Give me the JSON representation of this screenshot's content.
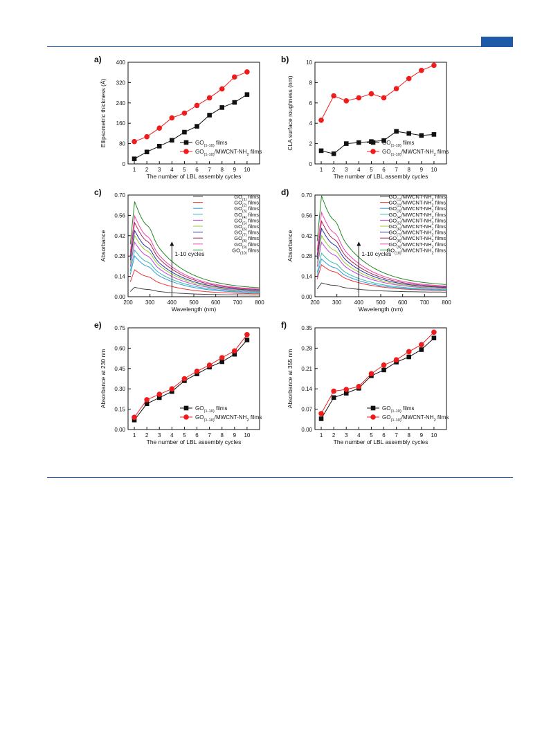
{
  "colors": {
    "header_line": "#1f5aa8",
    "black": "#111111",
    "red": "#ee1c1c"
  },
  "chart_data": [
    {
      "panel_label": "a)",
      "type": "line",
      "x": [
        1,
        2,
        3,
        4,
        5,
        6,
        7,
        8,
        9,
        10
      ],
      "xlabel": "The number of LBL assembly cycles",
      "ylabel": "Ellipsometric thickness (Å)",
      "ylim": [
        0,
        400
      ],
      "yticks": [
        0,
        80,
        160,
        240,
        320,
        400
      ],
      "xticks": [
        1,
        2,
        3,
        4,
        5,
        6,
        7,
        8,
        9,
        10
      ],
      "legend": "bottom-right",
      "series": [
        {
          "name": "GO(1-10) films",
          "color": "#111111",
          "marker": "square",
          "values": [
            20,
            47,
            70,
            93,
            125,
            148,
            192,
            222,
            242,
            273
          ]
        },
        {
          "name": "GO(1-10)/MWCNT-NH2  films",
          "color": "#ee1c1c",
          "marker": "circle",
          "values": [
            88,
            107,
            141,
            181,
            200,
            230,
            260,
            295,
            342,
            362
          ]
        }
      ]
    },
    {
      "panel_label": "b)",
      "type": "line",
      "x": [
        1,
        2,
        3,
        4,
        5,
        6,
        7,
        8,
        9,
        10
      ],
      "xlabel": "The number of LBL assembly cycles",
      "ylabel": "CLA surface roughness  (nm)",
      "ylim": [
        0,
        10
      ],
      "yticks": [
        0,
        2,
        4,
        6,
        8,
        10
      ],
      "xticks": [
        1,
        2,
        3,
        4,
        5,
        6,
        7,
        8,
        9,
        10
      ],
      "legend": "bottom-right",
      "series": [
        {
          "name": "GO(1-10) films",
          "color": "#111111",
          "marker": "square",
          "values": [
            1.3,
            1.0,
            2.0,
            2.1,
            2.2,
            2.3,
            3.2,
            3.0,
            2.8,
            2.9
          ]
        },
        {
          "name": "GO(1-10)/MWCNT-NH2  films",
          "color": "#ee1c1c",
          "marker": "circle",
          "values": [
            4.3,
            6.7,
            6.2,
            6.5,
            6.9,
            6.5,
            7.4,
            8.4,
            9.2,
            9.7
          ]
        }
      ]
    },
    {
      "panel_label": "c)",
      "type": "line",
      "xlabel": "Wavelength   (nm)",
      "ylabel": "Absorbance",
      "xlim": [
        200,
        800
      ],
      "xticks": [
        200,
        300,
        400,
        500,
        600,
        700,
        800
      ],
      "ylim": [
        0,
        0.7
      ],
      "yticks": [
        "0.00",
        "0.14",
        "0.28",
        "0.42",
        "0.56",
        "0.70"
      ],
      "annotation": "1-10 cycles",
      "legend": "top-right",
      "peak_wavelength": 230,
      "shoulder_wavelength": 300,
      "series": [
        {
          "name": "GO(1) films",
          "color": "#444444",
          "peak": 0.065,
          "tail": 0.01
        },
        {
          "name": "GO(2) films",
          "color": "#ee3333",
          "peak": 0.185,
          "tail": 0.016
        },
        {
          "name": "GO(3) films",
          "color": "#3399dd",
          "peak": 0.28,
          "tail": 0.021
        },
        {
          "name": "GO(4) films",
          "color": "#33bbaa",
          "peak": 0.32,
          "tail": 0.024
        },
        {
          "name": "GO(5) films",
          "color": "#bb44dd",
          "peak": 0.375,
          "tail": 0.028
        },
        {
          "name": "GO(6) films",
          "color": "#99cc33",
          "peak": 0.42,
          "tail": 0.031
        },
        {
          "name": "GO(7) films",
          "color": "#2233aa",
          "peak": 0.455,
          "tail": 0.034
        },
        {
          "name": "GO(8) films",
          "color": "#aa2255",
          "peak": 0.51,
          "tail": 0.038
        },
        {
          "name": "GO(9) films",
          "color": "#ee44aa",
          "peak": 0.555,
          "tail": 0.041
        },
        {
          "name": "GO(10) films",
          "color": "#228822",
          "peak": 0.655,
          "tail": 0.048
        }
      ]
    },
    {
      "panel_label": "d)",
      "type": "line",
      "xlabel": "Wavelength   (nm)",
      "ylabel": "Absorbance",
      "xlim": [
        200,
        800
      ],
      "xticks": [
        200,
        300,
        400,
        500,
        600,
        700,
        800
      ],
      "ylim": [
        0,
        0.7
      ],
      "yticks": [
        "0.00",
        "0.14",
        "0.28",
        "0.42",
        "0.56",
        "0.70"
      ],
      "annotation": "1-10 cycles",
      "legend": "top-right",
      "peak_wavelength": 230,
      "shoulder_wavelength": 300,
      "series": [
        {
          "name": "GO(1)/MWCNT-NH2  films",
          "color": "#444444",
          "peak": 0.095,
          "tail": 0.03
        },
        {
          "name": "GO(2)/MWCNT-NH2  films",
          "color": "#ee3333",
          "peak": 0.22,
          "tail": 0.038
        },
        {
          "name": "GO(3)/MWCNT-NH2  films",
          "color": "#3399dd",
          "peak": 0.26,
          "tail": 0.04
        },
        {
          "name": "GO(4)/MWCNT-NH2  films",
          "color": "#33bbaa",
          "peak": 0.3,
          "tail": 0.043
        },
        {
          "name": "GO(5)/MWCNT-NH2  films",
          "color": "#bb44dd",
          "peak": 0.375,
          "tail": 0.048
        },
        {
          "name": "GO(6)/MWCNT-NH2  films",
          "color": "#99cc33",
          "peak": 0.42,
          "tail": 0.051
        },
        {
          "name": "GO(7)/MWCNT-NH2  films",
          "color": "#2233aa",
          "peak": 0.47,
          "tail": 0.054
        },
        {
          "name": "GO(8)/MWCNT-NH2  films",
          "color": "#aa2255",
          "peak": 0.52,
          "tail": 0.058
        },
        {
          "name": "GO(9)/MWCNT-NH2  films",
          "color": "#ee44aa",
          "peak": 0.58,
          "tail": 0.062
        },
        {
          "name": "GO(10)/MWCNT-NH2  films",
          "color": "#228822",
          "peak": 0.695,
          "tail": 0.07
        }
      ]
    },
    {
      "panel_label": "e)",
      "type": "line",
      "x": [
        1,
        2,
        3,
        4,
        5,
        6,
        7,
        8,
        9,
        10
      ],
      "xlabel": "The number of LBL assembly cycles",
      "ylabel": "Absorbance at 230 nm",
      "ylim": [
        0,
        0.75
      ],
      "yticks": [
        "0.00",
        "0.15",
        "0.30",
        "0.45",
        "0.60",
        "0.75"
      ],
      "xticks": [
        1,
        2,
        3,
        4,
        5,
        6,
        7,
        8,
        9,
        10
      ],
      "legend": "bottom-right",
      "series": [
        {
          "name": "GO(1-10) films",
          "color": "#111111",
          "marker": "square",
          "values": [
            0.07,
            0.19,
            0.235,
            0.28,
            0.36,
            0.41,
            0.46,
            0.5,
            0.555,
            0.66
          ]
        },
        {
          "name": "GO(1-10)/MWCNT-NH2  films",
          "color": "#ee1c1c",
          "marker": "circle",
          "values": [
            0.09,
            0.22,
            0.26,
            0.3,
            0.375,
            0.43,
            0.475,
            0.53,
            0.58,
            0.7
          ]
        }
      ]
    },
    {
      "panel_label": "f)",
      "type": "line",
      "x": [
        1,
        2,
        3,
        4,
        5,
        6,
        7,
        8,
        9,
        10
      ],
      "xlabel": "The number of LBL assembly cycles",
      "ylabel": "Absorbance at 355 nm",
      "ylim": [
        0,
        0.35
      ],
      "yticks": [
        "0.00",
        "0.07",
        "0.14",
        "0.21",
        "0.28",
        "0.35"
      ],
      "xticks": [
        1,
        2,
        3,
        4,
        5,
        6,
        7,
        8,
        9,
        10
      ],
      "legend": "bottom-right",
      "series": [
        {
          "name": "GO(1-10) films",
          "color": "#111111",
          "marker": "square",
          "values": [
            0.037,
            0.11,
            0.125,
            0.142,
            0.185,
            0.205,
            0.232,
            0.25,
            0.275,
            0.315
          ]
        },
        {
          "name": "GO(1-10)/MWCNT-NH2  films",
          "color": "#ee1c1c",
          "marker": "circle",
          "values": [
            0.055,
            0.132,
            0.138,
            0.148,
            0.192,
            0.222,
            0.24,
            0.268,
            0.292,
            0.335
          ]
        }
      ]
    }
  ]
}
